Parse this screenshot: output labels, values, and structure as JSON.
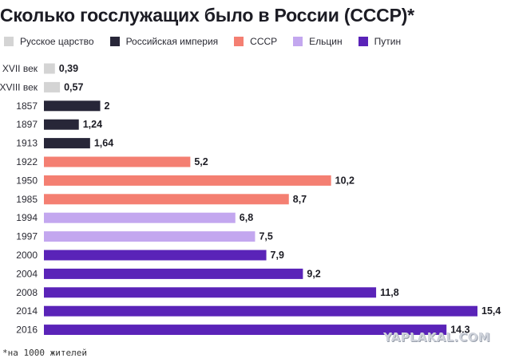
{
  "title": "Сколько госслужащих было в России (СССР)*",
  "footnote": "*на 1000 жителей",
  "watermark": "YAPLAKAL.COM",
  "legend": [
    {
      "name": "Русское царство",
      "color": "#d4d4d4"
    },
    {
      "name": "Российская империя",
      "color": "#272638"
    },
    {
      "name": "СССР",
      "color": "#f47f72"
    },
    {
      "name": "Ельцин",
      "color": "#c3a7ef"
    },
    {
      "name": "Путин",
      "color": "#5a23b8"
    }
  ],
  "chart_data": {
    "type": "bar",
    "orientation": "horizontal",
    "title": "Сколько госслужащих было в России (СССР)*",
    "categories": [
      "XVII век",
      "XVIII век",
      "1857",
      "1897",
      "1913",
      "1922",
      "1950",
      "1985",
      "1994",
      "1997",
      "2000",
      "2004",
      "2008",
      "2014",
      "2016"
    ],
    "values": [
      0.39,
      0.57,
      2,
      1.24,
      1.64,
      5.2,
      10.2,
      8.7,
      6.8,
      7.5,
      7.9,
      9.2,
      11.8,
      15.4,
      14.3
    ],
    "value_labels": [
      "0,39",
      "0,57",
      "2",
      "1,24",
      "1,64",
      "5,2",
      "10,2",
      "8,7",
      "6,8",
      "7,5",
      "7,9",
      "9,2",
      "11,8",
      "15,4",
      "14,3"
    ],
    "period": [
      "Русское царство",
      "Русское царство",
      "Российская империя",
      "Российская империя",
      "Российская империя",
      "СССР",
      "СССР",
      "СССР",
      "Ельцин",
      "Ельцин",
      "Путин",
      "Путин",
      "Путин",
      "Путин",
      "Путин"
    ],
    "xlim": [
      0,
      15.4
    ],
    "grid": false,
    "legend_position": "top-left"
  }
}
